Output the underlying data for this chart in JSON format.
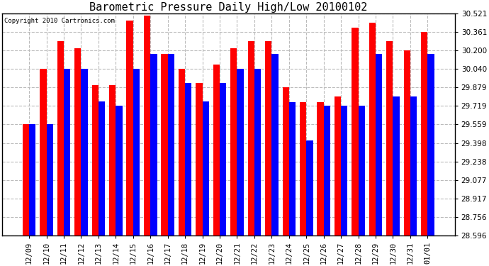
{
  "title": "Barometric Pressure Daily High/Low 20100102",
  "copyright": "Copyright 2010 Cartronics.com",
  "categories": [
    "12/09",
    "12/10",
    "12/11",
    "12/12",
    "12/13",
    "12/14",
    "12/15",
    "12/16",
    "12/17",
    "12/18",
    "12/19",
    "12/20",
    "12/21",
    "12/22",
    "12/23",
    "12/24",
    "12/25",
    "12/26",
    "12/27",
    "12/28",
    "12/29",
    "12/30",
    "12/31",
    "01/01"
  ],
  "highs": [
    29.56,
    30.04,
    30.28,
    30.22,
    29.9,
    29.9,
    30.46,
    30.5,
    30.17,
    30.04,
    29.92,
    30.08,
    30.22,
    30.28,
    30.28,
    29.88,
    29.75,
    29.75,
    29.8,
    30.4,
    30.44,
    30.28,
    30.2,
    30.36
  ],
  "lows": [
    29.56,
    29.56,
    30.04,
    30.04,
    29.76,
    29.72,
    30.04,
    30.17,
    30.17,
    29.92,
    29.76,
    29.92,
    30.04,
    30.04,
    30.17,
    29.75,
    29.42,
    29.72,
    29.72,
    29.72,
    30.17,
    29.8,
    29.8,
    30.17
  ],
  "yticks": [
    28.596,
    28.756,
    28.917,
    29.077,
    29.238,
    29.398,
    29.559,
    29.719,
    29.879,
    30.04,
    30.2,
    30.361,
    30.521
  ],
  "ymin": 28.596,
  "ymax": 30.521,
  "bar_width": 0.38,
  "high_color": "#FF0000",
  "low_color": "#0000FF",
  "bg_color": "#FFFFFF",
  "plot_bg_color": "#FFFFFF",
  "grid_color": "#BBBBBB",
  "title_fontsize": 11,
  "tick_fontsize": 7.5
}
